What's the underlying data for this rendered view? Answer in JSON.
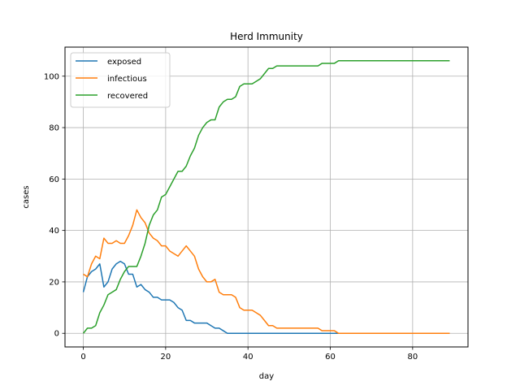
{
  "chart_data": {
    "type": "line",
    "title": "Herd Immunity",
    "xlabel": "day",
    "ylabel": "cases",
    "xlim": [
      -4.45,
      93.45
    ],
    "ylim": [
      -5.3,
      111.3
    ],
    "xticks": [
      0,
      20,
      40,
      60,
      80
    ],
    "yticks": [
      0,
      20,
      40,
      60,
      80,
      100
    ],
    "grid": true,
    "legend_position": "upper-left",
    "series": [
      {
        "name": "exposed",
        "color": "#1f77b4",
        "x": [
          0,
          1,
          2,
          3,
          4,
          5,
          6,
          7,
          8,
          9,
          10,
          11,
          12,
          13,
          14,
          15,
          16,
          17,
          18,
          19,
          20,
          21,
          22,
          23,
          24,
          25,
          26,
          27,
          28,
          29,
          30,
          31,
          32,
          33,
          34,
          35,
          36,
          37,
          38,
          39,
          40,
          41,
          42,
          43,
          44,
          45,
          46,
          47,
          48,
          49,
          50,
          51,
          52,
          53,
          54,
          55,
          56,
          57,
          58,
          59,
          60,
          61,
          62,
          63,
          64,
          65,
          66,
          67,
          68,
          69,
          70,
          71,
          72,
          73,
          74,
          75,
          76,
          77,
          78,
          79,
          80,
          81,
          82,
          83,
          84,
          85,
          86,
          87,
          88,
          89
        ],
        "y": [
          16,
          22,
          24,
          25,
          27,
          18,
          20,
          25,
          27,
          28,
          27,
          23,
          23,
          18,
          19,
          17,
          16,
          14,
          14,
          13,
          13,
          13,
          12,
          10,
          9,
          5,
          5,
          4,
          4,
          4,
          4,
          3,
          2,
          2,
          1,
          0,
          0,
          0,
          0,
          0,
          0,
          0,
          0,
          0,
          0,
          0,
          0,
          0,
          0,
          0,
          0,
          0,
          0,
          0,
          0,
          0,
          0,
          0,
          0,
          0,
          0,
          0,
          0,
          0,
          0,
          0,
          0,
          0,
          0,
          0,
          0,
          0,
          0,
          0,
          0,
          0,
          0,
          0,
          0,
          0,
          0,
          0,
          0,
          0,
          0,
          0,
          0,
          0,
          0,
          0
        ]
      },
      {
        "name": "infectious",
        "color": "#ff7f0e",
        "x": [
          0,
          1,
          2,
          3,
          4,
          5,
          6,
          7,
          8,
          9,
          10,
          11,
          12,
          13,
          14,
          15,
          16,
          17,
          18,
          19,
          20,
          21,
          22,
          23,
          24,
          25,
          26,
          27,
          28,
          29,
          30,
          31,
          32,
          33,
          34,
          35,
          36,
          37,
          38,
          39,
          40,
          41,
          42,
          43,
          44,
          45,
          46,
          47,
          48,
          49,
          50,
          51,
          52,
          53,
          54,
          55,
          56,
          57,
          58,
          59,
          60,
          61,
          62,
          63,
          64,
          65,
          66,
          67,
          68,
          69,
          70,
          71,
          72,
          73,
          74,
          75,
          76,
          77,
          78,
          79,
          80,
          81,
          82,
          83,
          84,
          85,
          86,
          87,
          88,
          89
        ],
        "y": [
          23,
          22,
          27,
          30,
          29,
          37,
          35,
          35,
          36,
          35,
          35,
          38,
          42,
          48,
          45,
          43,
          39,
          37,
          36,
          34,
          34,
          32,
          31,
          30,
          32,
          34,
          32,
          30,
          25,
          22,
          20,
          20,
          21,
          16,
          15,
          15,
          15,
          14,
          10,
          9,
          9,
          9,
          8,
          7,
          5,
          3,
          3,
          2,
          2,
          2,
          2,
          2,
          2,
          2,
          2,
          2,
          2,
          2,
          1,
          1,
          1,
          1,
          0,
          0,
          0,
          0,
          0,
          0,
          0,
          0,
          0,
          0,
          0,
          0,
          0,
          0,
          0,
          0,
          0,
          0,
          0,
          0,
          0,
          0,
          0,
          0,
          0,
          0,
          0,
          0
        ]
      },
      {
        "name": "recovered",
        "color": "#2ca02c",
        "x": [
          0,
          1,
          2,
          3,
          4,
          5,
          6,
          7,
          8,
          9,
          10,
          11,
          12,
          13,
          14,
          15,
          16,
          17,
          18,
          19,
          20,
          21,
          22,
          23,
          24,
          25,
          26,
          27,
          28,
          29,
          30,
          31,
          32,
          33,
          34,
          35,
          36,
          37,
          38,
          39,
          40,
          41,
          42,
          43,
          44,
          45,
          46,
          47,
          48,
          49,
          50,
          51,
          52,
          53,
          54,
          55,
          56,
          57,
          58,
          59,
          60,
          61,
          62,
          63,
          64,
          65,
          66,
          67,
          68,
          69,
          70,
          71,
          72,
          73,
          74,
          75,
          76,
          77,
          78,
          79,
          80,
          81,
          82,
          83,
          84,
          85,
          86,
          87,
          88,
          89
        ],
        "y": [
          0,
          2,
          2,
          3,
          8,
          11,
          15,
          16,
          17,
          21,
          24,
          26,
          26,
          26,
          30,
          35,
          42,
          46,
          48,
          53,
          54,
          57,
          60,
          63,
          63,
          65,
          69,
          72,
          77,
          80,
          82,
          83,
          83,
          88,
          90,
          91,
          91,
          92,
          96,
          97,
          97,
          97,
          98,
          99,
          101,
          103,
          103,
          104,
          104,
          104,
          104,
          104,
          104,
          104,
          104,
          104,
          104,
          104,
          105,
          105,
          105,
          105,
          106,
          106,
          106,
          106,
          106,
          106,
          106,
          106,
          106,
          106,
          106,
          106,
          106,
          106,
          106,
          106,
          106,
          106,
          106,
          106,
          106,
          106,
          106,
          106,
          106,
          106,
          106,
          106
        ]
      }
    ]
  }
}
